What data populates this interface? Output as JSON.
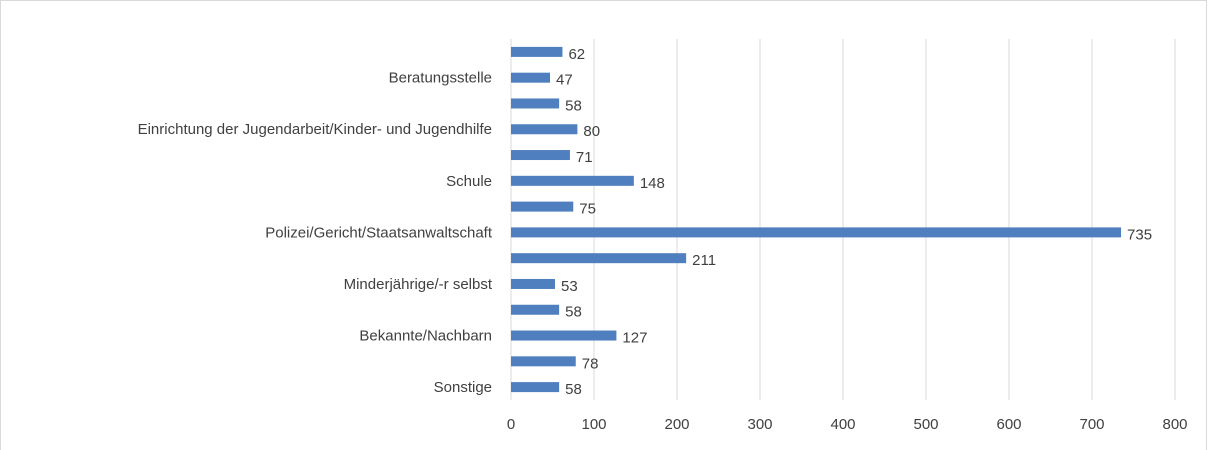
{
  "chart_data": {
    "type": "hbar",
    "categories": [
      null,
      "Beratungsstelle",
      null,
      "Einrichtung der Jugendarbeit/Kinder- und Jugendhilfe",
      null,
      "Schule",
      null,
      "Polizei/Gericht/Staatsanwaltschaft",
      null,
      "Minderjährige/-r selbst",
      null,
      "Bekannte/Nachbarn",
      null,
      "Sonstige"
    ],
    "values": [
      62,
      47,
      58,
      80,
      71,
      148,
      75,
      735,
      211,
      53,
      58,
      127,
      78,
      58
    ],
    "color": "#4f7fbe",
    "xlim": [
      0,
      800
    ],
    "xticks": [
      0,
      100,
      200,
      300,
      400,
      500,
      600,
      700,
      800
    ],
    "grid": true
  }
}
